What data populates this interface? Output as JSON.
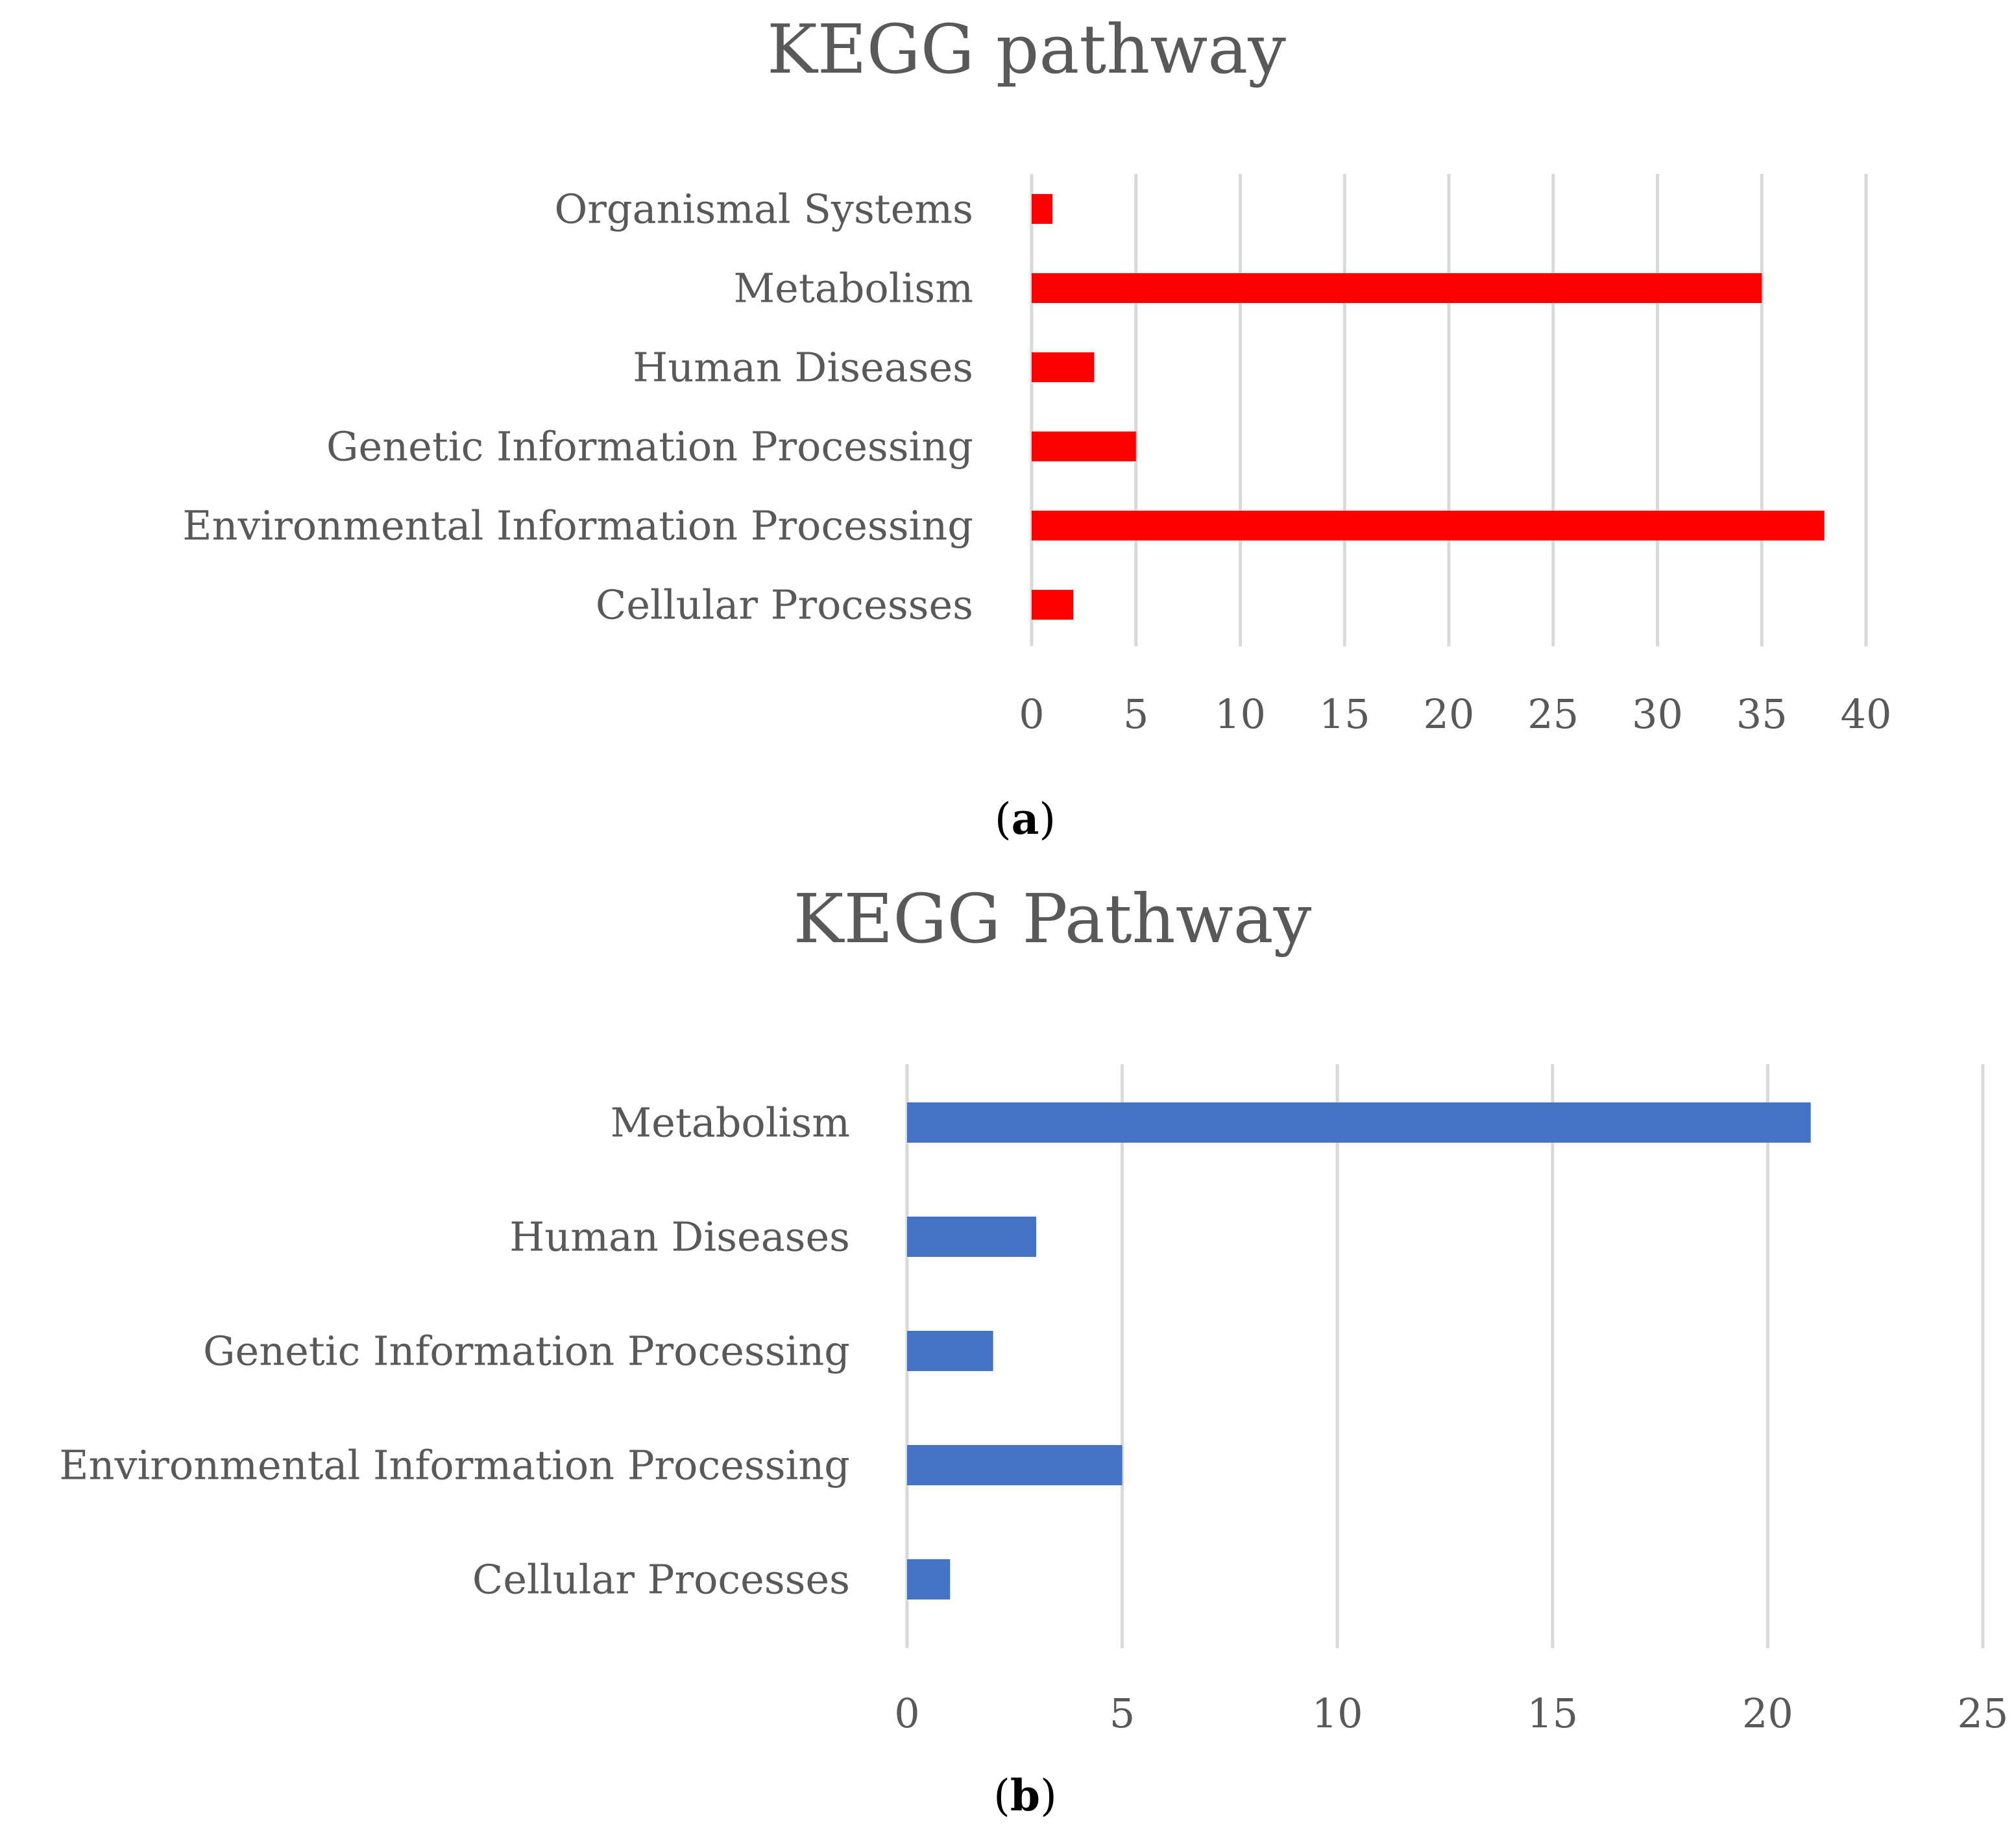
{
  "chart_data": [
    {
      "type": "bar",
      "orientation": "horizontal",
      "title": "KEGG pathway",
      "panel_label": "a",
      "categories": [
        "Organismal Systems",
        "Metabolism",
        "Human Diseases",
        "Genetic Information Processing",
        "Environmental Information Processing",
        "Cellular Processes"
      ],
      "values": [
        1,
        35,
        3,
        5,
        38,
        2
      ],
      "xlim": [
        0,
        40
      ],
      "xticks": [
        0,
        5,
        10,
        15,
        20,
        25,
        30,
        35,
        40
      ],
      "xlabel": "",
      "ylabel": "",
      "grid": "vertical",
      "color": "#ff0000"
    },
    {
      "type": "bar",
      "orientation": "horizontal",
      "title": "KEGG Pathway",
      "panel_label": "b",
      "categories": [
        "Metabolism",
        "Human Diseases",
        "Genetic Information Processing",
        "Environmental Information Processing",
        "Cellular Processes"
      ],
      "values": [
        21,
        3,
        2,
        5,
        1
      ],
      "xlim": [
        0,
        25
      ],
      "xticks": [
        0,
        5,
        10,
        15,
        20,
        25
      ],
      "xlabel": "",
      "ylabel": "",
      "grid": "vertical",
      "color": "#4472c4"
    }
  ]
}
